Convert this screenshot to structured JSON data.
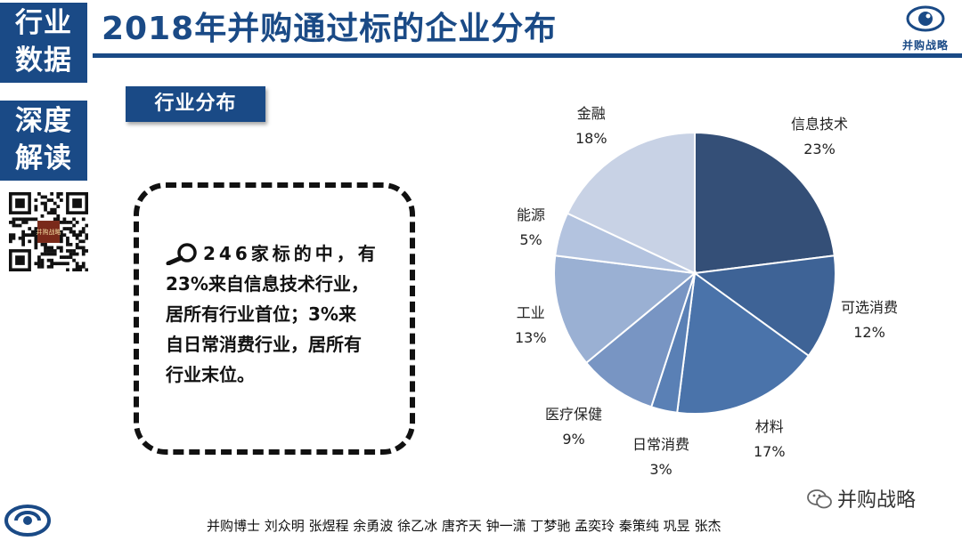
{
  "sidebar": {
    "tab1": {
      "line1": "行业",
      "line2": "数据"
    },
    "tab2": {
      "line1": "深度",
      "line2": "解读"
    }
  },
  "header": {
    "title": "2018年并购通过标的企业分布",
    "logo_caption": "并购战略"
  },
  "section": {
    "label": "行业分布"
  },
  "qr": {
    "badge": "并购战略"
  },
  "callout": {
    "lines": [
      "246家标的中，有",
      "23%来自信息技术行业，",
      "居所有行业首位；3%来",
      "自日常消费行业，居所有",
      "行业末位。"
    ]
  },
  "chart_data": {
    "type": "pie",
    "title": "",
    "categories": [
      "信息技术",
      "可选消费",
      "材料",
      "日常消费",
      "医疗保健",
      "工业",
      "能源",
      "金融"
    ],
    "values": [
      23,
      12,
      17,
      3,
      9,
      13,
      5,
      18
    ],
    "value_labels": [
      "23%",
      "12%",
      "17%",
      "3%",
      "9%",
      "13%",
      "5%",
      "18%"
    ],
    "colors": [
      "#344f77",
      "#3e6396",
      "#4a73aa",
      "#5a80b5",
      "#7895c3",
      "#9ab0d3",
      "#b3c3df",
      "#c8d2e5"
    ],
    "start_angle_deg": 0,
    "direction": "clockwise",
    "legend": "none"
  },
  "footer": {
    "credits": "并购博士 刘众明 张煜程 余勇波 徐乙冰 唐齐天 钟一潇 丁梦驰 孟奕玲 秦策纯 巩昱 张杰",
    "wechat": "并购战略"
  }
}
